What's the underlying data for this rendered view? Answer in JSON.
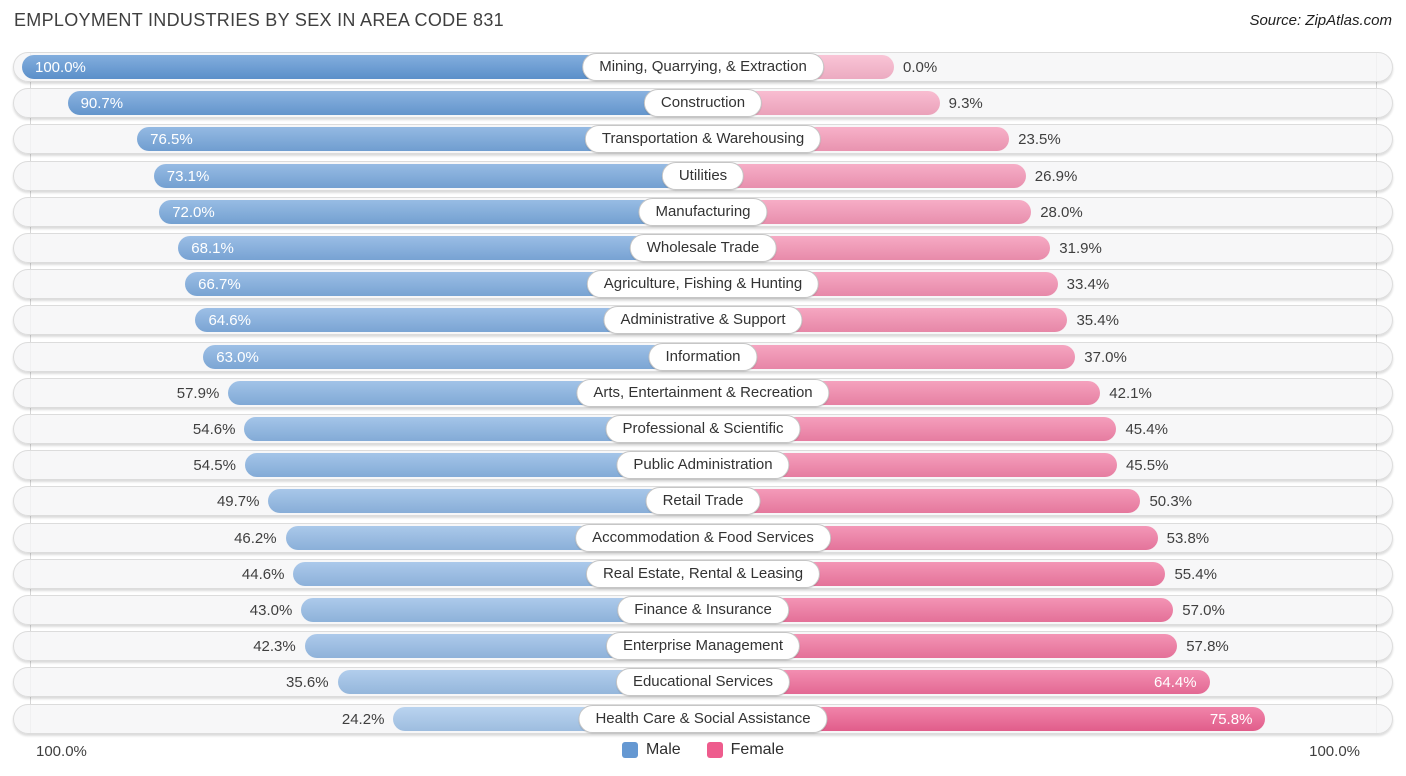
{
  "title": "EMPLOYMENT INDUSTRIES BY SEX IN AREA CODE 831",
  "source": "Source: ZipAtlas.com",
  "axis": {
    "bottom_left_label": "100.0%",
    "bottom_right_label": "100.0%"
  },
  "legend": {
    "items": [
      {
        "label": "Male",
        "color": "#6598d2"
      },
      {
        "label": "Female",
        "color": "#ee5c8d"
      }
    ],
    "position": "bottom-center"
  },
  "colors": {
    "male_at_0pct": "#bdd6f2",
    "male_at_100pct": "#6097d4",
    "female_at_0pct": "#f8b4cb",
    "female_at_100pct": "#ea4880",
    "track_bg": "#f5f5f6",
    "track_border": "#dcdcdc",
    "pill_bg": "#ffffff",
    "pill_border": "#c6c6c6",
    "label_dark": "#3f3f3f",
    "label_light": "#ffffff"
  },
  "chart_data": {
    "type": "bar",
    "variant": "diverging-horizontal",
    "title": "EMPLOYMENT INDUSTRIES BY SEX IN AREA CODE 831",
    "value_suffix": "%",
    "axis_range_each_side": [
      0,
      100
    ],
    "grid": "100% gridline on far left and far right",
    "legend_position": "bottom",
    "categories": [
      "Mining, Quarrying, & Extraction",
      "Construction",
      "Transportation & Warehousing",
      "Utilities",
      "Manufacturing",
      "Wholesale Trade",
      "Agriculture, Fishing & Hunting",
      "Administrative & Support",
      "Information",
      "Arts, Entertainment & Recreation",
      "Professional & Scientific",
      "Public Administration",
      "Retail Trade",
      "Accommodation & Food Services",
      "Real Estate, Rental & Leasing",
      "Finance & Insurance",
      "Enterprise Management",
      "Educational Services",
      "Health Care & Social Assistance"
    ],
    "series": [
      {
        "name": "Male",
        "side": "left",
        "values": [
          100.0,
          90.7,
          76.5,
          73.1,
          72.0,
          68.1,
          66.7,
          64.6,
          63.0,
          57.9,
          54.6,
          54.5,
          49.7,
          46.2,
          44.6,
          43.0,
          42.3,
          35.6,
          24.2
        ]
      },
      {
        "name": "Female",
        "side": "right",
        "values": [
          0.0,
          9.3,
          23.5,
          26.9,
          28.0,
          31.9,
          33.4,
          35.4,
          37.0,
          42.1,
          45.4,
          45.5,
          50.3,
          53.8,
          55.4,
          57.0,
          57.8,
          64.4,
          75.8
        ]
      }
    ]
  }
}
